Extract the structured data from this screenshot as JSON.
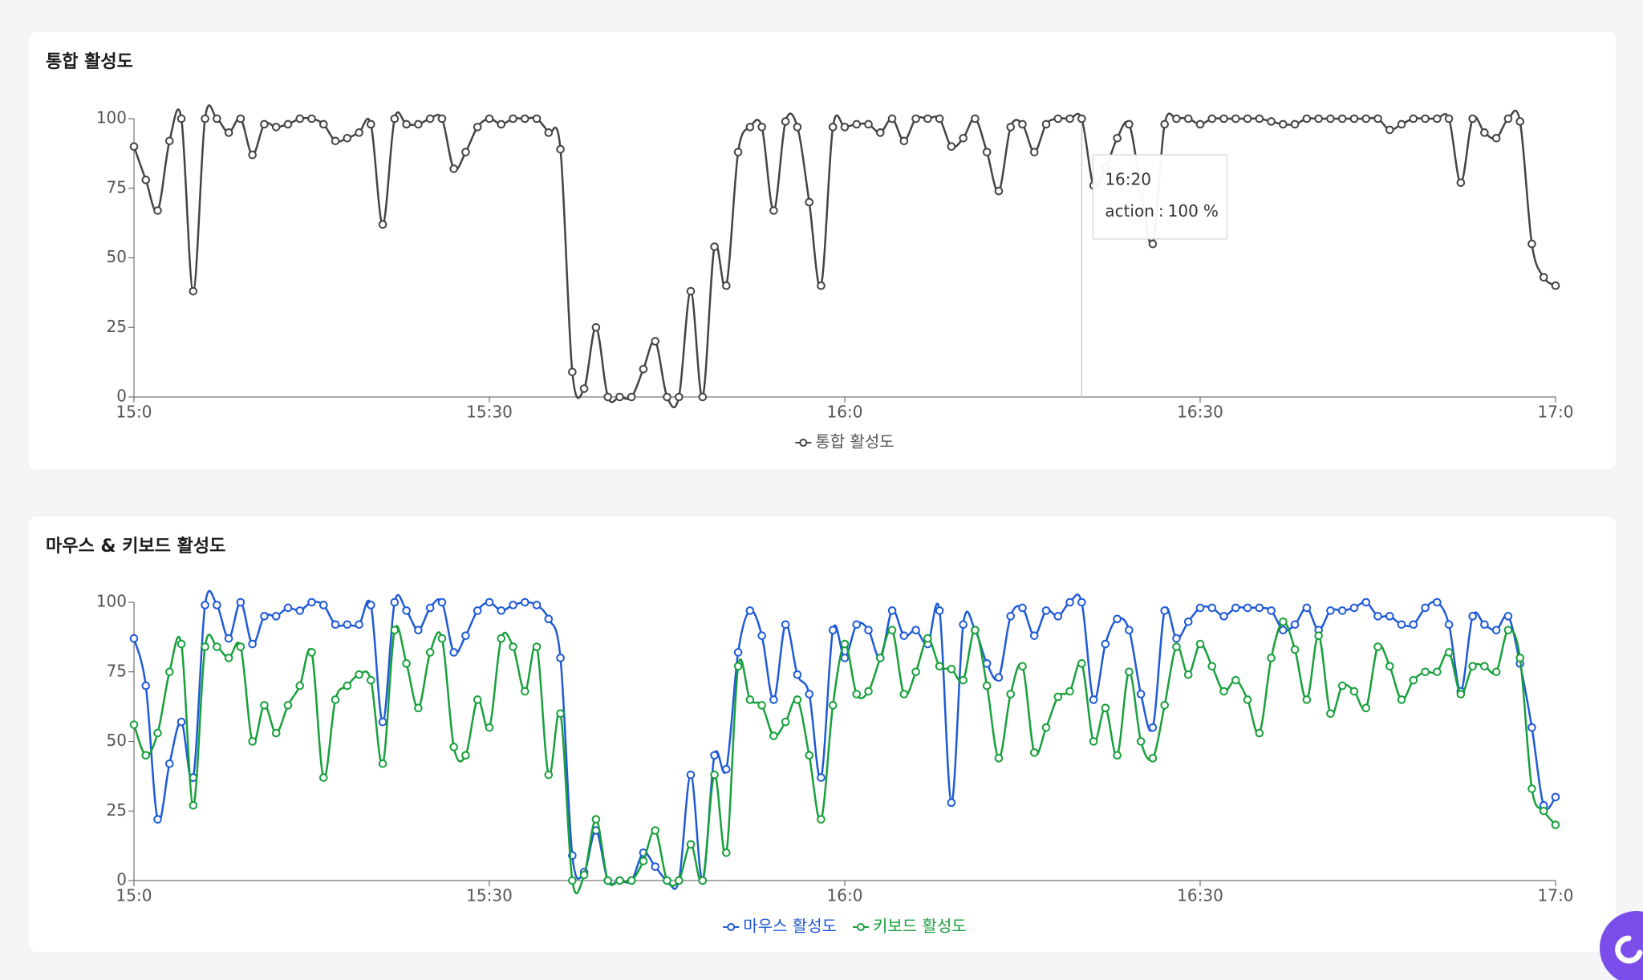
{
  "chart_data": [
    {
      "type": "line",
      "title": "통합 활성도",
      "categories": [
        "15:0",
        null,
        null,
        null,
        null,
        null,
        null,
        null,
        null,
        null,
        null,
        null,
        null,
        null,
        null,
        null,
        null,
        null,
        null,
        null,
        null,
        null,
        null,
        null,
        null,
        null,
        null,
        null,
        null,
        null,
        "15:30",
        null,
        null,
        null,
        null,
        null,
        null,
        null,
        null,
        null,
        null,
        null,
        null,
        null,
        null,
        null,
        null,
        null,
        null,
        null,
        null,
        null,
        null,
        null,
        null,
        null,
        null,
        null,
        null,
        null,
        "16:0",
        null,
        null,
        null,
        null,
        null,
        null,
        null,
        null,
        null,
        null,
        null,
        null,
        null,
        null,
        null,
        null,
        null,
        null,
        null,
        null,
        null,
        null,
        null,
        null,
        null,
        null,
        null,
        null,
        null,
        "16:30",
        null,
        null,
        null,
        null,
        null,
        null,
        null,
        null,
        null,
        null,
        null,
        null,
        null,
        null,
        null,
        null,
        null,
        null,
        null,
        null,
        null,
        null,
        null,
        null,
        null,
        null,
        null,
        null,
        null,
        "17:0"
      ],
      "series": [
        {
          "name": "통합 활성도",
          "color": "#444444",
          "values": [
            90,
            78,
            67,
            92,
            100,
            38,
            100,
            100,
            95,
            100,
            87,
            98,
            97,
            98,
            100,
            100,
            98,
            92,
            93,
            95,
            98,
            62,
            100,
            98,
            98,
            100,
            100,
            82,
            88,
            97,
            100,
            98,
            100,
            100,
            100,
            95,
            89,
            9,
            3,
            25,
            0,
            0,
            0,
            10,
            20,
            0,
            0,
            38,
            0,
            54,
            40,
            88,
            97,
            97,
            67,
            99,
            97,
            70,
            40,
            97,
            97,
            98,
            98,
            95,
            100,
            92,
            100,
            100,
            100,
            90,
            93,
            100,
            88,
            74,
            97,
            98,
            88,
            98,
            100,
            100,
            100,
            76,
            82,
            93,
            98,
            75,
            55,
            98,
            100,
            100,
            98,
            100,
            100,
            100,
            100,
            100,
            99,
            98,
            98,
            100,
            100,
            100,
            100,
            100,
            100,
            100,
            96,
            98,
            100,
            100,
            100,
            100,
            77,
            100,
            95,
            93,
            100,
            99,
            55,
            43,
            40
          ]
        }
      ],
      "ylim": [
        0,
        100
      ],
      "yticks": [
        0,
        25,
        50,
        75,
        100
      ],
      "tooltip": {
        "title": "16:20",
        "name": "action",
        "value": 100,
        "unit": "%"
      }
    },
    {
      "type": "line",
      "title": "마우스 & 키보드 활성도",
      "categories": [
        "15:0",
        null,
        null,
        null,
        null,
        null,
        null,
        null,
        null,
        null,
        null,
        null,
        null,
        null,
        null,
        null,
        null,
        null,
        null,
        null,
        null,
        null,
        null,
        null,
        null,
        null,
        null,
        null,
        null,
        null,
        "15:30",
        null,
        null,
        null,
        null,
        null,
        null,
        null,
        null,
        null,
        null,
        null,
        null,
        null,
        null,
        null,
        null,
        null,
        null,
        null,
        null,
        null,
        null,
        null,
        null,
        null,
        null,
        null,
        null,
        null,
        "16:0",
        null,
        null,
        null,
        null,
        null,
        null,
        null,
        null,
        null,
        null,
        null,
        null,
        null,
        null,
        null,
        null,
        null,
        null,
        null,
        null,
        null,
        null,
        null,
        null,
        null,
        null,
        null,
        null,
        null,
        "16:30",
        null,
        null,
        null,
        null,
        null,
        null,
        null,
        null,
        null,
        null,
        null,
        null,
        null,
        null,
        null,
        null,
        null,
        null,
        null,
        null,
        null,
        null,
        null,
        null,
        null,
        null,
        null,
        null,
        null,
        "17:0"
      ],
      "series": [
        {
          "name": "마우스 활성도",
          "color": "#1f5ad6",
          "values": [
            87,
            70,
            22,
            42,
            57,
            37,
            99,
            99,
            87,
            100,
            85,
            95,
            95,
            98,
            97,
            100,
            99,
            92,
            92,
            92,
            99,
            57,
            100,
            97,
            90,
            98,
            100,
            82,
            88,
            97,
            100,
            97,
            99,
            100,
            99,
            94,
            80,
            9,
            3,
            18,
            0,
            0,
            0,
            10,
            5,
            0,
            0,
            38,
            0,
            45,
            40,
            82,
            97,
            88,
            65,
            92,
            74,
            67,
            37,
            90,
            80,
            92,
            90,
            80,
            97,
            88,
            90,
            85,
            97,
            28,
            92,
            90,
            78,
            73,
            95,
            98,
            88,
            97,
            95,
            100,
            100,
            65,
            85,
            94,
            90,
            67,
            55,
            97,
            87,
            93,
            98,
            98,
            95,
            98,
            98,
            98,
            97,
            90,
            92,
            98,
            90,
            97,
            97,
            98,
            100,
            95,
            95,
            92,
            92,
            98,
            100,
            92,
            68,
            95,
            92,
            90,
            95,
            78,
            55,
            27,
            30
          ]
        },
        {
          "name": "키보드 활성도",
          "color": "#18a03c",
          "values": [
            56,
            45,
            53,
            75,
            85,
            27,
            84,
            84,
            80,
            84,
            50,
            63,
            53,
            63,
            70,
            82,
            37,
            65,
            70,
            74,
            72,
            42,
            90,
            78,
            62,
            82,
            87,
            48,
            45,
            65,
            55,
            87,
            84,
            68,
            84,
            38,
            60,
            0,
            2,
            22,
            0,
            0,
            0,
            7,
            18,
            0,
            0,
            13,
            0,
            38,
            10,
            77,
            65,
            63,
            52,
            57,
            65,
            45,
            22,
            63,
            85,
            67,
            68,
            80,
            90,
            67,
            75,
            87,
            77,
            76,
            72,
            90,
            70,
            44,
            67,
            77,
            46,
            55,
            66,
            68,
            78,
            50,
            62,
            45,
            75,
            50,
            44,
            63,
            84,
            74,
            85,
            77,
            68,
            72,
            65,
            53,
            80,
            93,
            83,
            65,
            88,
            60,
            70,
            68,
            62,
            84,
            77,
            65,
            72,
            75,
            75,
            82,
            67,
            77,
            77,
            75,
            90,
            80,
            33,
            25,
            20
          ]
        }
      ],
      "ylim": [
        0,
        100
      ],
      "yticks": [
        0,
        25,
        50,
        75,
        100
      ]
    }
  ]
}
